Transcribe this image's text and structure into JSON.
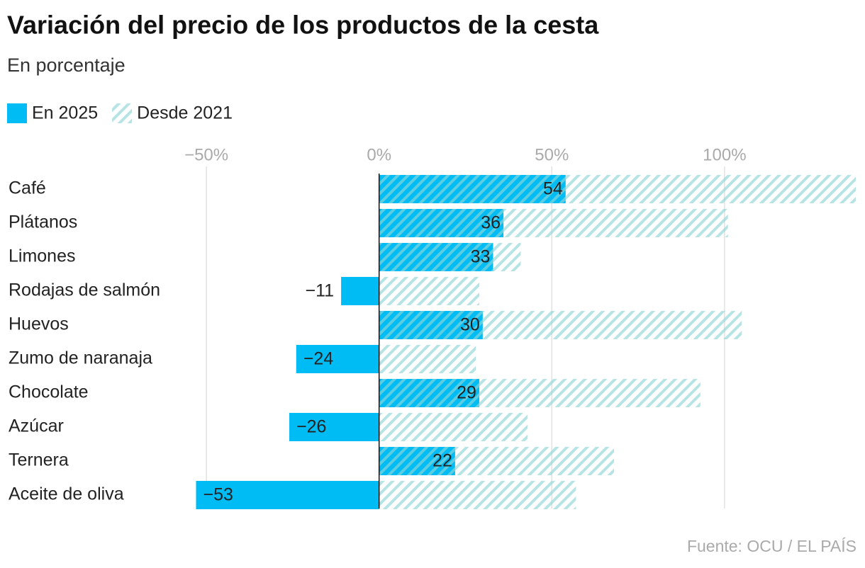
{
  "chart_data": {
    "type": "bar",
    "orientation": "horizontal",
    "overlap": true,
    "title": "Variación del precio de los productos de la cesta",
    "subtitle": "En porcentaje",
    "source": "Fuente: OCU / EL PAÍS",
    "categories": [
      "Café",
      "Plátanos",
      "Limones",
      "Rodajas de salmón",
      "Huevos",
      "Zumo de naranaja",
      "Chocolate",
      "Azúcar",
      "Ternera",
      "Aceite de oliva"
    ],
    "series": [
      {
        "name": "En 2025",
        "color": "#00bcf5",
        "pattern": "solid",
        "values": [
          54,
          36,
          33,
          -11,
          30,
          -24,
          29,
          -26,
          22,
          -53
        ],
        "value_labels": [
          "54",
          "36",
          "33",
          "−11",
          "30",
          "−24",
          "29",
          "−26",
          "22",
          "−53"
        ]
      },
      {
        "name": "Desde 2021",
        "color": "#8fd6d6",
        "pattern": "hatch",
        "values": [
          138,
          101,
          41,
          29,
          105,
          28,
          93,
          43,
          68,
          57
        ]
      }
    ],
    "xlim": [
      -57,
      138
    ],
    "xticks": [
      {
        "value": -50,
        "label": "−50%"
      },
      {
        "value": 0,
        "label": "0%"
      },
      {
        "value": 50,
        "label": "50%"
      },
      {
        "value": 100,
        "label": "100%"
      }
    ],
    "grid": true
  }
}
